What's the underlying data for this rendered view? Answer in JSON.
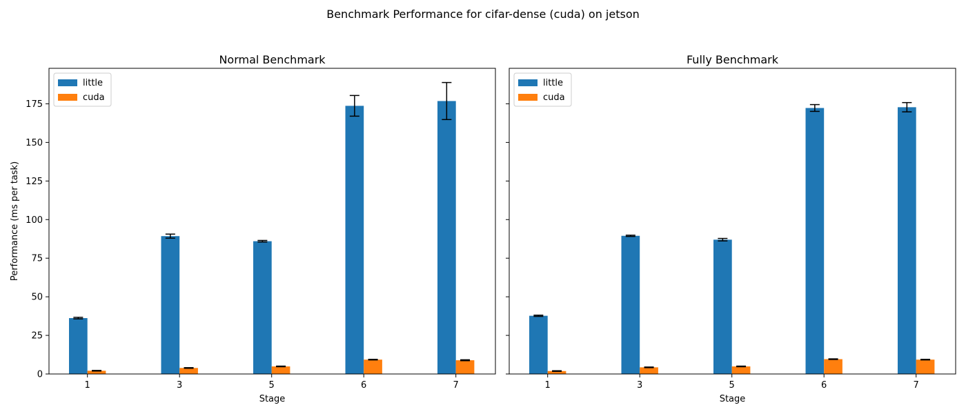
{
  "figure": {
    "suptitle": "Benchmark Performance for cifar-dense (cuda) on jetson"
  },
  "colors": {
    "little": "#1f77b4",
    "cuda": "#ff7f0e",
    "errorbar": "#000000"
  },
  "chart_data": [
    {
      "type": "bar",
      "title": "Normal Benchmark",
      "xlabel": "Stage",
      "ylabel": "Performance (ms per task)",
      "categories": [
        "1",
        "3",
        "5",
        "6",
        "7"
      ],
      "ylim": [
        0,
        198
      ],
      "yticks": [
        0,
        25,
        50,
        75,
        100,
        125,
        150,
        175
      ],
      "legend": "upper-left",
      "grid": false,
      "series": [
        {
          "name": "little",
          "values": [
            36.2,
            89.3,
            86.0,
            173.7,
            176.8
          ],
          "errors": [
            0.5,
            1.3,
            0.5,
            6.7,
            12.0
          ]
        },
        {
          "name": "cuda",
          "values": [
            2.1,
            3.9,
            4.9,
            9.3,
            8.9
          ],
          "errors": [
            0.2,
            0.2,
            0.2,
            0.2,
            0.3
          ]
        }
      ]
    },
    {
      "type": "bar",
      "title": "Fully Benchmark",
      "xlabel": "Stage",
      "ylabel": "",
      "categories": [
        "1",
        "3",
        "5",
        "6",
        "7"
      ],
      "ylim": [
        0,
        198
      ],
      "yticks": [
        0,
        25,
        50,
        75,
        100,
        125,
        150,
        175
      ],
      "legend": "upper-left",
      "grid": false,
      "series": [
        {
          "name": "little",
          "values": [
            37.7,
            89.5,
            87.0,
            172.3,
            172.8
          ],
          "errors": [
            0.4,
            0.4,
            0.8,
            2.2,
            3.0
          ]
        },
        {
          "name": "cuda",
          "values": [
            1.9,
            4.3,
            4.9,
            9.6,
            9.3
          ],
          "errors": [
            0.2,
            0.2,
            0.2,
            0.2,
            0.2
          ]
        }
      ]
    }
  ]
}
